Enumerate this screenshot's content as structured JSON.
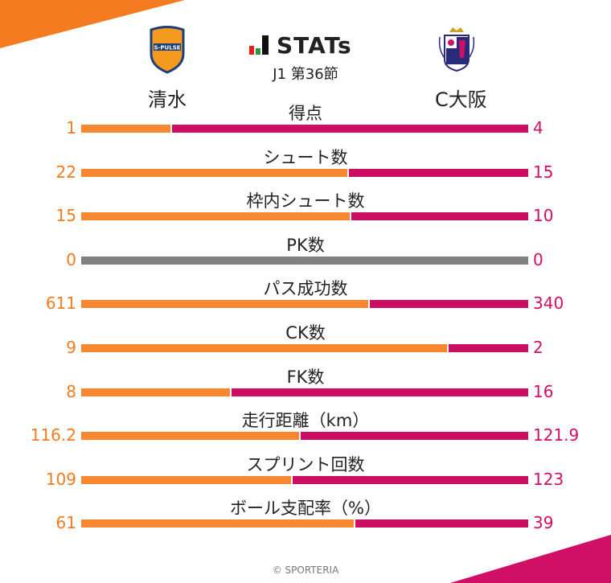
{
  "header": {
    "brand": "STATs",
    "round": "J1 第36節",
    "home_team": "清水",
    "away_team": "C大阪",
    "home_logo_text": "S-PULSE"
  },
  "colors": {
    "home": "#f47b20",
    "away": "#d00f66",
    "neutral": "#808080"
  },
  "stats": [
    {
      "label": "得点",
      "home": "1",
      "away": "4",
      "home_val": 1,
      "away_val": 4
    },
    {
      "label": "シュート数",
      "home": "22",
      "away": "15",
      "home_val": 22,
      "away_val": 15
    },
    {
      "label": "枠内シュート数",
      "home": "15",
      "away": "10",
      "home_val": 15,
      "away_val": 10
    },
    {
      "label": "PK数",
      "home": "0",
      "away": "0",
      "home_val": 0,
      "away_val": 0
    },
    {
      "label": "パス成功数",
      "home": "611",
      "away": "340",
      "home_val": 611,
      "away_val": 340
    },
    {
      "label": "CK数",
      "home": "9",
      "away": "2",
      "home_val": 9,
      "away_val": 2
    },
    {
      "label": "FK数",
      "home": "8",
      "away": "16",
      "home_val": 8,
      "away_val": 16
    },
    {
      "label": "走行距離（km）",
      "home": "116.2",
      "away": "121.9",
      "home_val": 116.2,
      "away_val": 121.9
    },
    {
      "label": "スプリント回数",
      "home": "109",
      "away": "123",
      "home_val": 109,
      "away_val": 123
    },
    {
      "label": "ボール支配率（%）",
      "home": "61",
      "away": "39",
      "home_val": 61,
      "away_val": 39
    }
  ],
  "footer": "© SPORTERIA"
}
